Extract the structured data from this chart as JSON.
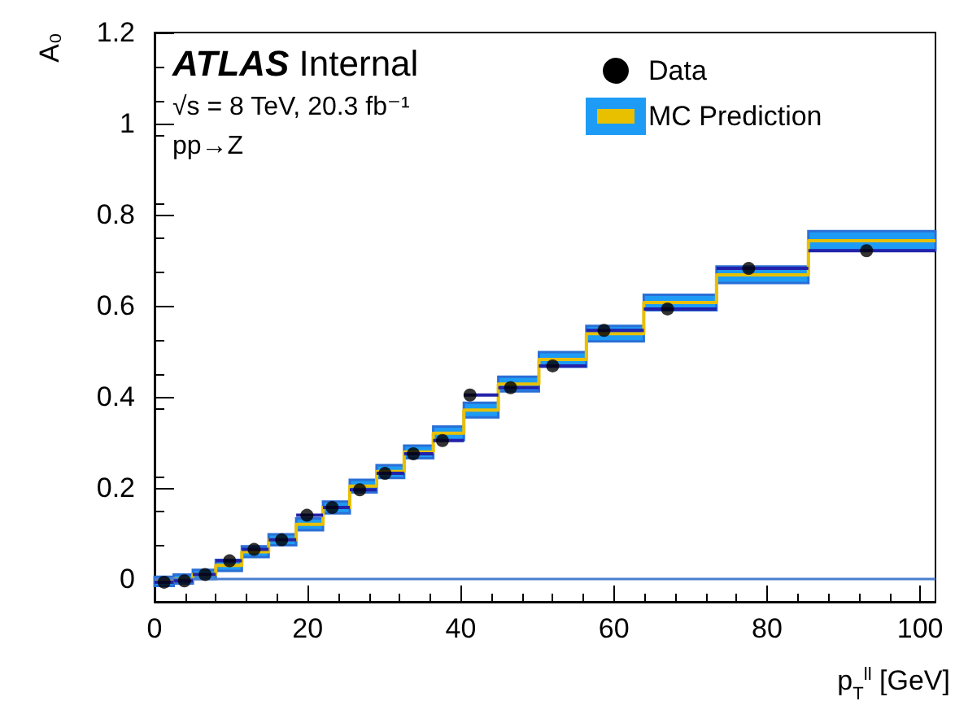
{
  "chart_data": {
    "type": "scatter",
    "xlabel": "p$_{T}$$^{ll}$ [GeV]",
    "ylabel": "A₀",
    "annotations": [
      "ATLAS Internal",
      "√s = 8 TeV, 20.3 fb⁻¹",
      "pp→Z"
    ],
    "xlim": [
      0,
      102
    ],
    "xticks": [
      0,
      20,
      40,
      60,
      80,
      100
    ],
    "ylim": [
      -0.05,
      1.2
    ],
    "yticks": [
      0,
      0.2,
      0.4,
      0.6,
      0.8,
      1,
      1.2
    ],
    "grid": false,
    "legend": "top right",
    "ref_lines": [
      {
        "axis": "y",
        "value": 0,
        "color": "#4a7fd0"
      }
    ],
    "series": [
      {
        "name": "Data",
        "color": "#000000",
        "marker": "circle",
        "x": [
          1.25,
          3.9,
          6.6,
          9.8,
          13,
          16.6,
          19.9,
          23.2,
          26.8,
          30.1,
          33.8,
          37.6,
          41.2,
          46.5,
          52,
          58.7,
          67,
          77.6,
          93
        ],
        "values": [
          -0.007,
          -0.004,
          0.01,
          0.04,
          0.065,
          0.086,
          0.14,
          0.157,
          0.196,
          0.232,
          0.275,
          0.304,
          0.404,
          0.42,
          0.468,
          0.546,
          0.593,
          0.682,
          0.721
        ],
        "xerrors": [
          [
            0,
            2.5
          ],
          [
            2.5,
            5
          ],
          [
            5,
            8
          ],
          [
            8,
            11.4
          ],
          [
            11.4,
            14.9
          ],
          [
            14.9,
            18.5
          ],
          [
            18.5,
            22
          ],
          [
            22,
            25.5
          ],
          [
            25.5,
            29
          ],
          [
            29,
            32.6
          ],
          [
            32.6,
            36.4
          ],
          [
            36.4,
            40.4
          ],
          [
            40.4,
            44.9
          ],
          [
            44.9,
            50.2
          ],
          [
            50.2,
            56.4
          ],
          [
            56.4,
            63.9
          ],
          [
            63.9,
            73.4
          ],
          [
            73.4,
            85.4
          ],
          [
            85.4,
            102
          ]
        ]
      },
      {
        "name": "MC Prediction",
        "type": "step",
        "color": "#e8c000",
        "x": [
          0,
          2.5,
          5,
          8,
          11.4,
          14.9,
          18.5,
          22,
          25.5,
          29,
          32.6,
          36.4,
          40.4,
          44.9,
          50.2,
          56.4,
          63.9,
          73.4,
          85.4,
          102
        ],
        "values": [
          -0.005,
          0,
          0.01,
          0.03,
          0.06,
          0.086,
          0.12,
          0.157,
          0.204,
          0.236,
          0.279,
          0.32,
          0.371,
          0.428,
          0.482,
          0.539,
          0.607,
          0.668,
          0.743,
          0.743
        ],
        "lower": [
          -0.015,
          -0.01,
          0,
          0.018,
          0.048,
          0.074,
          0.107,
          0.144,
          0.19,
          0.222,
          0.265,
          0.305,
          0.355,
          0.412,
          0.466,
          0.522,
          0.59,
          0.65,
          0.722,
          0.722
        ],
        "upper": [
          0.005,
          0.01,
          0.02,
          0.042,
          0.072,
          0.098,
          0.133,
          0.17,
          0.218,
          0.25,
          0.293,
          0.335,
          0.387,
          0.444,
          0.498,
          0.556,
          0.624,
          0.686,
          0.764,
          0.764
        ]
      }
    ]
  }
}
